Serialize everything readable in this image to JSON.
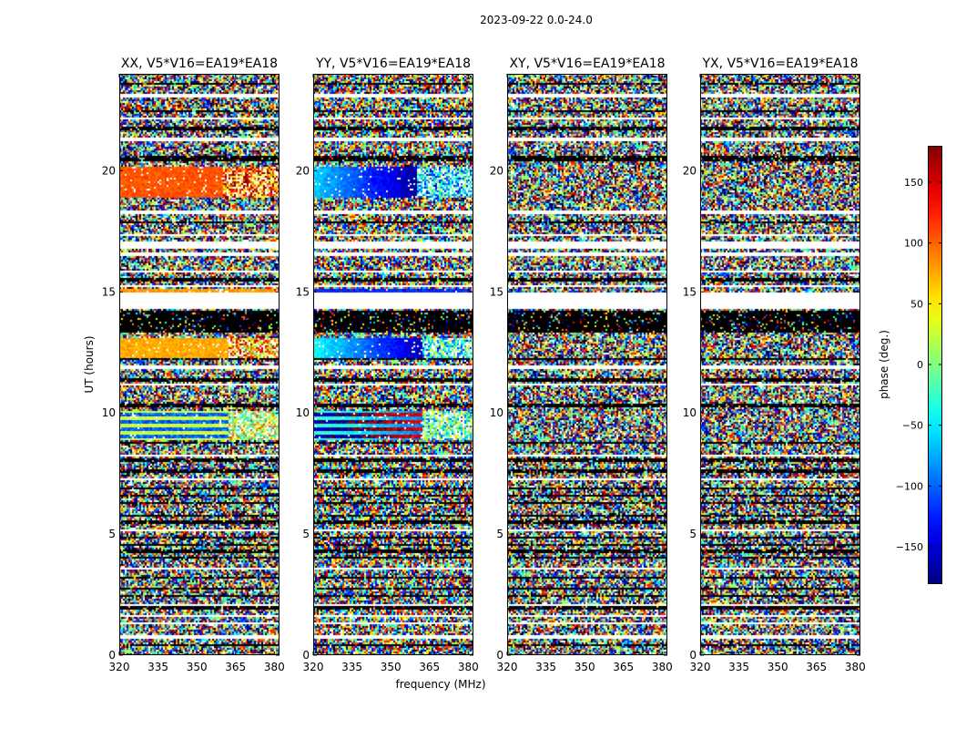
{
  "figure": {
    "title": "2023-09-22 0.0-24.0",
    "xlabel": "frequency (MHz)",
    "ylabel": "UT (hours)"
  },
  "chart_data": [
    {
      "type": "heatmap",
      "title": "XX, V5*V16=EA19*EA18",
      "xlim": [
        320,
        382
      ],
      "ylim": [
        0,
        24
      ],
      "xticks": [
        320,
        335,
        350,
        365,
        380
      ],
      "yticks": [
        0,
        5,
        10,
        15,
        20
      ],
      "coherent_bands": [
        {
          "t0": 18.85,
          "t1": 20.2,
          "phase_deg": 105,
          "noisy_from_MHz": 360
        },
        {
          "t0": 12.3,
          "t1": 13.1,
          "phase_deg": 75,
          "noisy_from_MHz": 362
        },
        {
          "t0": 8.9,
          "t1": 10.1,
          "phase_deg": 30,
          "noisy_from_MHz": 362,
          "striped": true
        },
        {
          "t0": 14.95,
          "t1": 15.15,
          "phase_deg": 80,
          "noisy_from_MHz": 380
        }
      ]
    },
    {
      "type": "heatmap",
      "title": "YY, V5*V16=EA19*EA18",
      "xlim": [
        320,
        382
      ],
      "ylim": [
        0,
        24
      ],
      "xticks": [
        320,
        335,
        350,
        365,
        380
      ],
      "yticks": [
        0,
        5,
        10,
        15,
        20
      ],
      "coherent_bands": [
        {
          "t0": 18.85,
          "t1": 20.2,
          "phase_deg": -60,
          "gradient_to_deg": -170,
          "noisy_from_MHz": 360
        },
        {
          "t0": 12.3,
          "t1": 13.1,
          "phase_deg": -40,
          "gradient_to_deg": -160,
          "noisy_from_MHz": 362
        },
        {
          "t0": 8.9,
          "t1": 10.1,
          "phase_deg": -20,
          "gradient_to_deg": -90,
          "noisy_from_MHz": 362,
          "striped": true
        },
        {
          "t0": 14.95,
          "t1": 15.15,
          "phase_deg": -120,
          "noisy_from_MHz": 380
        }
      ]
    },
    {
      "type": "heatmap",
      "title": "XY, V5*V16=EA19*EA18",
      "xlim": [
        320,
        382
      ],
      "ylim": [
        0,
        24
      ],
      "xticks": [
        320,
        335,
        350,
        365,
        380
      ],
      "yticks": [
        0,
        5,
        10,
        15,
        20
      ],
      "coherent_bands": []
    },
    {
      "type": "heatmap",
      "title": "YX, V5*V16=EA19*EA18",
      "xlim": [
        320,
        382
      ],
      "ylim": [
        0,
        24
      ],
      "xticks": [
        320,
        335,
        350,
        365,
        380
      ],
      "yticks": [
        0,
        5,
        10,
        15,
        20
      ],
      "coherent_bands": []
    }
  ],
  "colorbar": {
    "label": "phase (deg.)",
    "range": [
      -180,
      180
    ],
    "ticks": [
      -150,
      -100,
      -50,
      0,
      50,
      100,
      150
    ],
    "tick_labels": [
      "−150",
      "−100",
      "−50",
      "0",
      "50",
      "100",
      "150"
    ],
    "colormap": "jet"
  },
  "flagged_time_ranges": [
    [
      23.05,
      23.2
    ],
    [
      22.1,
      22.2
    ],
    [
      21.2,
      21.35
    ],
    [
      18.2,
      18.35
    ],
    [
      17.3,
      17.4
    ],
    [
      16.8,
      17.05
    ],
    [
      16.5,
      16.6
    ],
    [
      15.8,
      15.9
    ],
    [
      15.2,
      15.25
    ],
    [
      14.3,
      14.95
    ],
    [
      11.8,
      11.95
    ],
    [
      11.1,
      11.2
    ],
    [
      8.2,
      8.3
    ],
    [
      7.2,
      7.3
    ],
    [
      5.1,
      5.2
    ],
    [
      3.5,
      3.6
    ],
    [
      2.0,
      2.1
    ],
    [
      1.55,
      1.65
    ],
    [
      1.25,
      1.35
    ],
    [
      0.7,
      0.8
    ]
  ],
  "dark_time_rows": [
    23.6,
    22.45,
    21.75,
    20.55,
    20.45,
    17.85,
    15.5,
    14.15,
    14.0,
    13.85,
    13.7,
    13.55,
    13.4,
    12.25,
    11.35,
    10.35,
    10.25,
    8.75,
    8.05,
    7.6,
    6.9,
    6.6,
    6.3,
    5.75,
    5.5,
    4.85,
    4.55,
    4.3,
    4.0,
    3.2,
    2.75,
    2.45,
    1.95,
    0.4
  ]
}
